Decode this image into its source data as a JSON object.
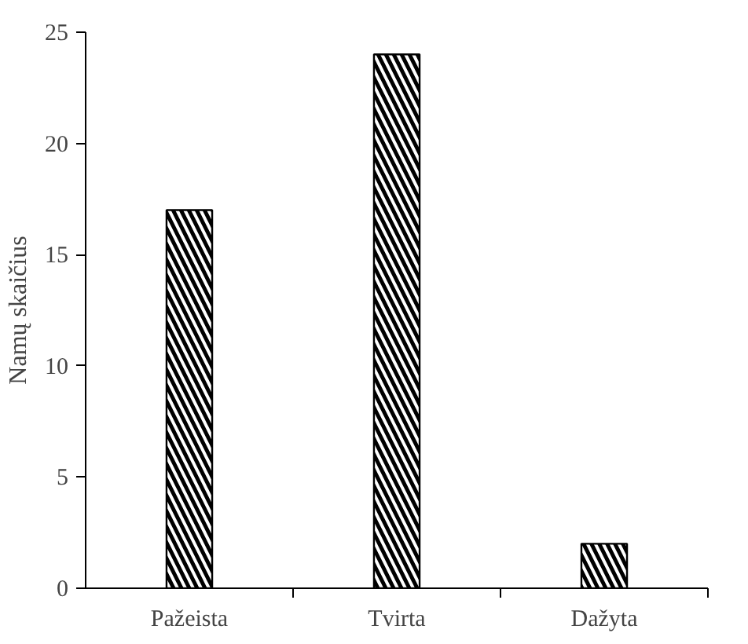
{
  "chart_data": {
    "type": "bar",
    "ylabel": "Namų skaičius",
    "categories": [
      "Pažeista",
      "Tvirta",
      "Dažyta"
    ],
    "values": [
      17,
      24,
      2
    ],
    "color": "#ffffff",
    "ylim": [
      0,
      25
    ],
    "yticks": [
      0,
      5,
      10,
      15,
      20,
      25
    ]
  }
}
